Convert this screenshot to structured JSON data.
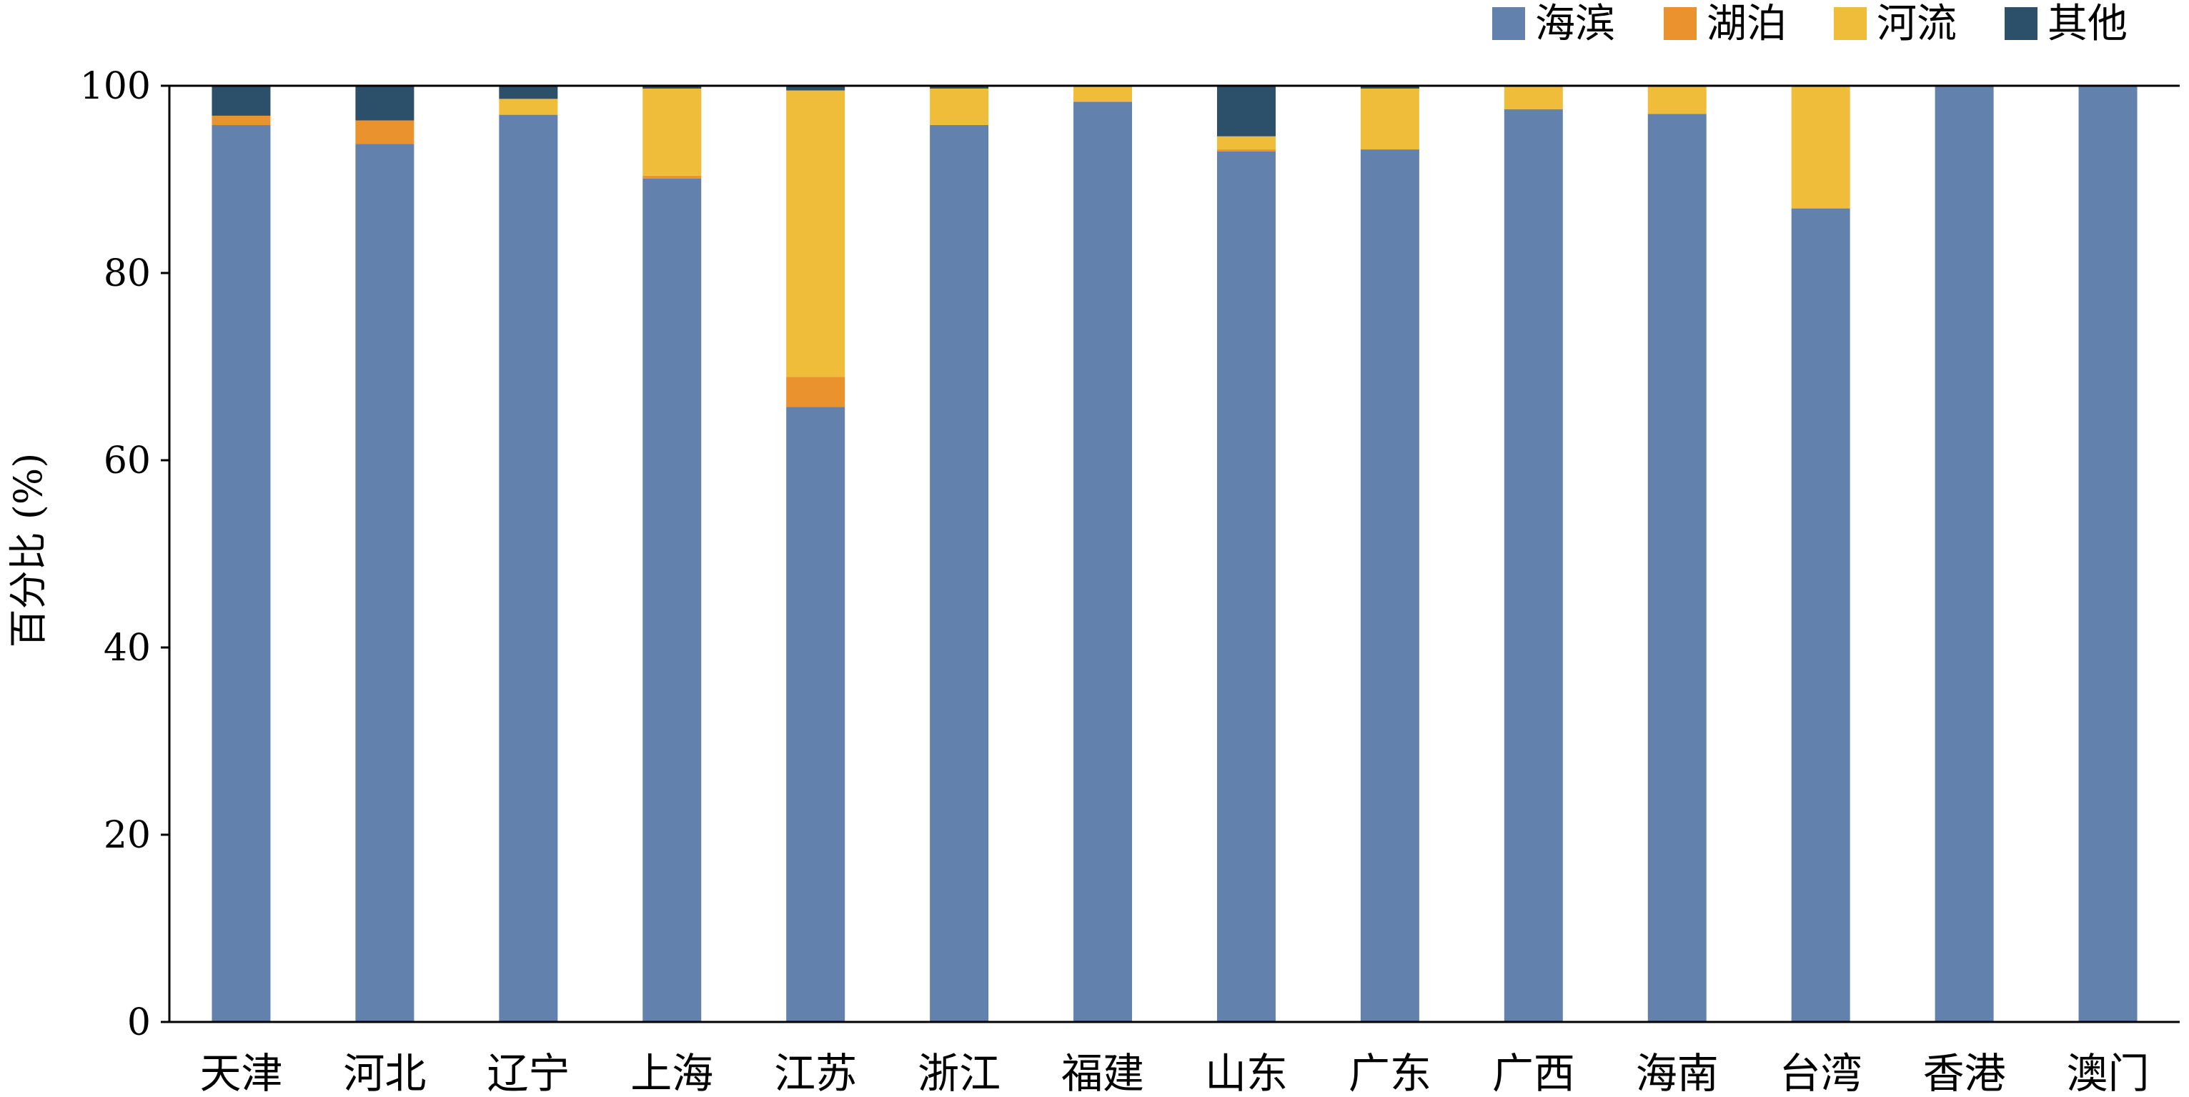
{
  "chart_data": {
    "type": "bar",
    "stacked": true,
    "title": "",
    "xlabel": "",
    "ylabel": "百分比 (%)",
    "ylim": [
      0,
      100
    ],
    "yticks": [
      0,
      20,
      40,
      60,
      80,
      100
    ],
    "grid": false,
    "legend_position": "top-right",
    "categories": [
      "天津",
      "河北",
      "辽宁",
      "上海",
      "江苏",
      "浙江",
      "福建",
      "山东",
      "广东",
      "广西",
      "海南",
      "台湾",
      "香港",
      "澳门"
    ],
    "series": [
      {
        "name": "海滨",
        "color": "#6282ad",
        "values": [
          95.8,
          93.8,
          96.9,
          90.1,
          65.7,
          95.8,
          98.3,
          93.0,
          93.2,
          97.5,
          97.0,
          86.9,
          100.0,
          100.0
        ]
      },
      {
        "name": "湖泊",
        "color": "#ea922d",
        "values": [
          1.0,
          2.5,
          0.0,
          0.3,
          3.2,
          0.0,
          0.0,
          0.2,
          0.0,
          0.0,
          0.0,
          0.0,
          0.0,
          0.0
        ]
      },
      {
        "name": "河流",
        "color": "#f0bd3a",
        "values": [
          0.0,
          0.0,
          1.7,
          9.3,
          30.6,
          3.9,
          1.7,
          1.4,
          6.5,
          2.5,
          3.0,
          13.1,
          0.0,
          0.0
        ]
      },
      {
        "name": "其他",
        "color": "#2c5069",
        "values": [
          3.2,
          3.7,
          1.4,
          0.3,
          0.5,
          0.3,
          0.0,
          5.4,
          0.3,
          0.0,
          0.0,
          0.0,
          0.0,
          0.0
        ]
      }
    ]
  }
}
